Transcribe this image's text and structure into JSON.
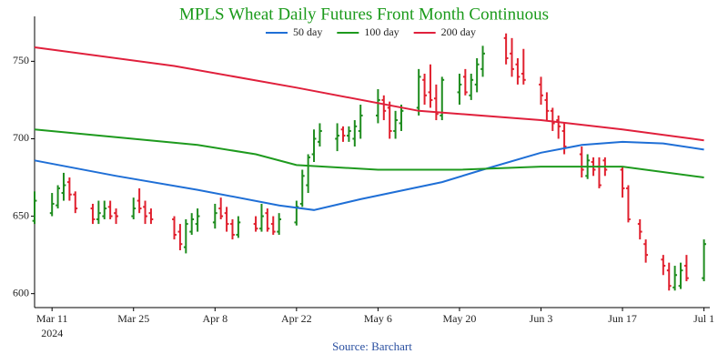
{
  "chart_data": {
    "type": "ohlc",
    "title": "MPLS Wheat Daily Futures Front Month Continuous",
    "source": "Source: Barchart",
    "increasing_color": "#1e8c1e",
    "decreasing_color": "#e0202e",
    "x": [
      "2024-03-08",
      "2024-03-11",
      "2024-03-12",
      "2024-03-13",
      "2024-03-14",
      "2024-03-15",
      "2024-03-18",
      "2024-03-19",
      "2024-03-20",
      "2024-03-21",
      "2024-03-22",
      "2024-03-25",
      "2024-03-26",
      "2024-03-27",
      "2024-03-28",
      "2024-04-01",
      "2024-04-02",
      "2024-04-03",
      "2024-04-04",
      "2024-04-05",
      "2024-04-08",
      "2024-04-09",
      "2024-04-10",
      "2024-04-11",
      "2024-04-12",
      "2024-04-15",
      "2024-04-16",
      "2024-04-17",
      "2024-04-18",
      "2024-04-19",
      "2024-04-22",
      "2024-04-23",
      "2024-04-24",
      "2024-04-25",
      "2024-04-26",
      "2024-04-29",
      "2024-04-30",
      "2024-05-01",
      "2024-05-02",
      "2024-05-03",
      "2024-05-06",
      "2024-05-07",
      "2024-05-08",
      "2024-05-09",
      "2024-05-10",
      "2024-05-13",
      "2024-05-14",
      "2024-05-15",
      "2024-05-16",
      "2024-05-17",
      "2024-05-20",
      "2024-05-21",
      "2024-05-22",
      "2024-05-23",
      "2024-05-24",
      "2024-05-28",
      "2024-05-29",
      "2024-05-30",
      "2024-05-31",
      "2024-06-03",
      "2024-06-04",
      "2024-06-05",
      "2024-06-06",
      "2024-06-07",
      "2024-06-10",
      "2024-06-11",
      "2024-06-12",
      "2024-06-13",
      "2024-06-14",
      "2024-06-17",
      "2024-06-18",
      "2024-06-20",
      "2024-06-21",
      "2024-06-24",
      "2024-06-25",
      "2024-06-26",
      "2024-06-27",
      "2024-06-28",
      "2024-07-01"
    ],
    "open": [
      647,
      652,
      657,
      665,
      672,
      664,
      655,
      648,
      650,
      656,
      652,
      650,
      660,
      656,
      652,
      648,
      640,
      630,
      640,
      645,
      646,
      655,
      652,
      645,
      638,
      645,
      642,
      652,
      645,
      640,
      646,
      658,
      670,
      690,
      698,
      700,
      706,
      702,
      700,
      705,
      715,
      725,
      720,
      705,
      710,
      720,
      738,
      730,
      726,
      715,
      730,
      740,
      728,
      735,
      745,
      765,
      755,
      748,
      742,
      735,
      725,
      718,
      712,
      705,
      690,
      676,
      685,
      682,
      686,
      680,
      668,
      645,
      632,
      622,
      615,
      604,
      605,
      618,
      610
    ],
    "high": [
      666,
      665,
      670,
      678,
      675,
      666,
      658,
      660,
      660,
      660,
      655,
      662,
      668,
      660,
      655,
      650,
      645,
      648,
      652,
      655,
      658,
      662,
      656,
      648,
      650,
      650,
      658,
      655,
      650,
      652,
      660,
      680,
      690,
      706,
      710,
      710,
      708,
      708,
      712,
      722,
      732,
      728,
      724,
      718,
      722,
      745,
      742,
      748,
      735,
      740,
      742,
      745,
      742,
      752,
      760,
      768,
      765,
      752,
      758,
      740,
      730,
      720,
      715,
      710,
      695,
      690,
      688,
      688,
      688,
      682,
      670,
      648,
      635,
      625,
      620,
      618,
      620,
      625,
      635
    ],
    "low": [
      645,
      650,
      655,
      660,
      660,
      652,
      645,
      645,
      648,
      648,
      645,
      648,
      652,
      645,
      645,
      635,
      628,
      626,
      638,
      640,
      642,
      648,
      640,
      635,
      636,
      640,
      640,
      640,
      638,
      638,
      644,
      656,
      665,
      685,
      695,
      692,
      698,
      698,
      695,
      700,
      710,
      712,
      700,
      700,
      705,
      715,
      722,
      720,
      712,
      712,
      722,
      728,
      725,
      730,
      740,
      748,
      740,
      735,
      735,
      722,
      712,
      705,
      700,
      690,
      675,
      674,
      676,
      668,
      676,
      662,
      646,
      635,
      620,
      612,
      602,
      602,
      603,
      608,
      608
    ],
    "close": [
      660,
      658,
      668,
      670,
      664,
      655,
      648,
      652,
      655,
      650,
      650,
      655,
      655,
      650,
      648,
      638,
      632,
      645,
      648,
      650,
      652,
      650,
      645,
      638,
      646,
      642,
      650,
      642,
      640,
      648,
      656,
      676,
      688,
      700,
      705,
      702,
      702,
      705,
      708,
      715,
      725,
      718,
      705,
      712,
      718,
      740,
      728,
      725,
      716,
      738,
      735,
      730,
      738,
      748,
      755,
      752,
      745,
      740,
      738,
      728,
      718,
      710,
      708,
      695,
      680,
      686,
      680,
      670,
      680,
      668,
      648,
      640,
      625,
      618,
      605,
      612,
      615,
      610,
      632
    ],
    "lines": [
      {
        "name": "50 day",
        "color": "#1f6fd6",
        "x": [
          "2024-03-08",
          "2024-03-22",
          "2024-04-05",
          "2024-04-19",
          "2024-04-25",
          "2024-05-03",
          "2024-05-17",
          "2024-05-24",
          "2024-06-03",
          "2024-06-10",
          "2024-06-17",
          "2024-06-24",
          "2024-07-01"
        ],
        "values": [
          686,
          676,
          667,
          657,
          654,
          661,
          672,
          680,
          691,
          696,
          698,
          697,
          693
        ]
      },
      {
        "name": "100 day",
        "color": "#1e9a1e",
        "x": [
          "2024-03-08",
          "2024-03-22",
          "2024-04-05",
          "2024-04-15",
          "2024-04-22",
          "2024-05-06",
          "2024-05-20",
          "2024-06-03",
          "2024-06-17",
          "2024-07-01"
        ],
        "values": [
          706,
          701,
          696,
          690,
          683,
          680,
          680,
          682,
          682,
          675
        ]
      },
      {
        "name": "200 day",
        "color": "#e0203c",
        "x": [
          "2024-03-08",
          "2024-04-01",
          "2024-04-22",
          "2024-05-13",
          "2024-06-03",
          "2024-06-17",
          "2024-07-01"
        ],
        "values": [
          759,
          747,
          733,
          718,
          712,
          706,
          699
        ]
      }
    ],
    "xlim": [
      "2024-03-08",
      "2024-07-02"
    ],
    "xticks": [
      {
        "value": "2024-03-11",
        "label": "Mar 11"
      },
      {
        "value": "2024-03-25",
        "label": "Mar 25"
      },
      {
        "value": "2024-04-08",
        "label": "Apr 8"
      },
      {
        "value": "2024-04-22",
        "label": "Apr 22"
      },
      {
        "value": "2024-05-06",
        "label": "May 6"
      },
      {
        "value": "2024-05-20",
        "label": "May 20"
      },
      {
        "value": "2024-06-03",
        "label": "Jun 3"
      },
      {
        "value": "2024-06-17",
        "label": "Jun 17"
      },
      {
        "value": "2024-07-01",
        "label": "Jul 1"
      }
    ],
    "x_year_label": "2024",
    "ylim": [
      591,
      779
    ],
    "yticks": [
      600,
      650,
      700,
      750
    ],
    "legend": "top"
  }
}
